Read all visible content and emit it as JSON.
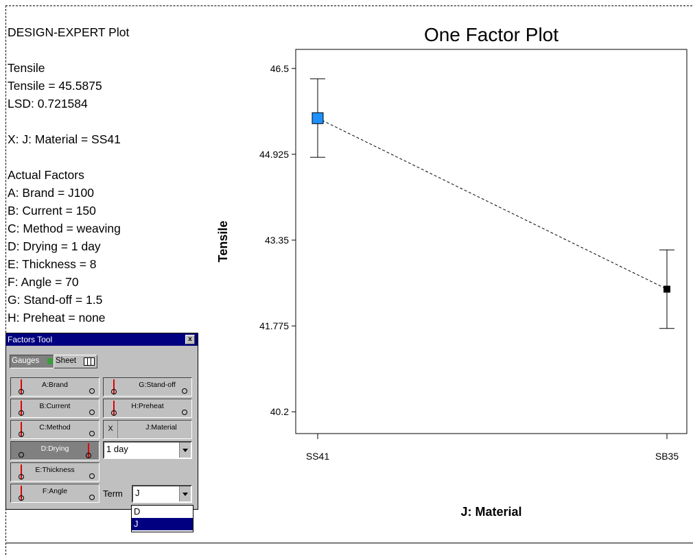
{
  "info": {
    "heading": "DESIGN-EXPERT Plot",
    "response": "Tensile",
    "response_value": "Tensile = 45.5875",
    "lsd": "LSD: 0.721584",
    "x_factor": "X: J: Material = SS41",
    "actual_factors_title": "Actual Factors",
    "factors": [
      "A: Brand = J100",
      "B: Current = 150",
      "C: Method = weaving",
      "D: Drying = 1 day",
      "E: Thickness = 8",
      "F: Angle = 70",
      "G: Stand-off = 1.5",
      "H: Preheat = none"
    ]
  },
  "factors_tool": {
    "title": "Factors Tool",
    "close": "x",
    "tab_gauges": "Gauges",
    "tab_sheet": "Sheet",
    "gauges": {
      "a": "A:Brand",
      "b": "B:Current",
      "c": "C:Method",
      "d": "D:Drying",
      "e": "E:Thickness",
      "f": "F:Angle",
      "g": "G:Stand-off",
      "h": "H:Preheat",
      "j": "J:Material"
    },
    "x_marker": "X",
    "drying_select": "1 day",
    "term_label": "Term",
    "term_select": "J",
    "term_options": [
      "D",
      "J"
    ]
  },
  "chart_data": {
    "type": "line",
    "title": "One Factor Plot",
    "xlabel": "J: Material",
    "ylabel": "Tensile",
    "categories": [
      "SS41",
      "SB35"
    ],
    "series": [
      {
        "values": [
          45.5875,
          42.45
        ],
        "error_low": [
          44.87,
          41.73
        ],
        "error_high": [
          46.31,
          43.17
        ]
      }
    ],
    "yticks": [
      "46.5",
      "44.925",
      "43.35",
      "41.775",
      "40.2"
    ],
    "ytick_values": [
      46.5,
      44.925,
      43.35,
      41.775,
      40.2
    ],
    "ylim": [
      39.8,
      46.85
    ],
    "grid": false,
    "colors": {
      "highlight": "#1e90ff",
      "point": "#000000"
    }
  }
}
